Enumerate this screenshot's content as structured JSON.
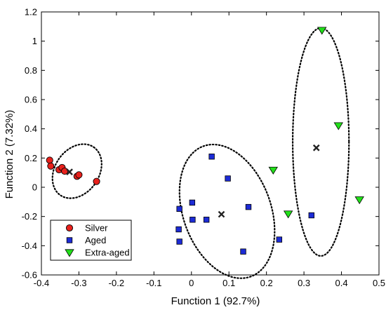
{
  "chart_data": {
    "type": "scatter",
    "xlabel": "Function 1 (92.7%)",
    "ylabel": "Function 2 (7.32%)",
    "xlim": [
      -0.4,
      0.5
    ],
    "ylim": [
      -0.6,
      1.2
    ],
    "xticks": [
      "-0.4",
      "-0.3",
      "-0.2",
      "-0.1",
      "0",
      "0.1",
      "0.2",
      "0.3",
      "0.4",
      "0.5"
    ],
    "yticks": [
      "-0.6",
      "-0.4",
      "-0.2",
      "0",
      "0.2",
      "0.4",
      "0.6",
      "0.8",
      "1",
      "1.2"
    ],
    "grid": false,
    "legend_position": "bottom-left",
    "series": [
      {
        "name": "Silver",
        "marker": "circle",
        "color": "#e8211c",
        "points": [
          {
            "x": -0.378,
            "y": 0.185
          },
          {
            "x": -0.375,
            "y": 0.145
          },
          {
            "x": -0.353,
            "y": 0.12
          },
          {
            "x": -0.345,
            "y": 0.135
          },
          {
            "x": -0.338,
            "y": 0.11
          },
          {
            "x": -0.305,
            "y": 0.075
          },
          {
            "x": -0.3,
            "y": 0.085
          },
          {
            "x": -0.253,
            "y": 0.04
          }
        ]
      },
      {
        "name": "Aged",
        "marker": "square",
        "color": "#1c2bd6",
        "points": [
          {
            "x": 0.054,
            "y": 0.21
          },
          {
            "x": 0.097,
            "y": 0.06
          },
          {
            "x": 0.002,
            "y": -0.105
          },
          {
            "x": -0.032,
            "y": -0.148
          },
          {
            "x": 0.152,
            "y": -0.135
          },
          {
            "x": 0.003,
            "y": -0.222
          },
          {
            "x": 0.04,
            "y": -0.222
          },
          {
            "x": -0.034,
            "y": -0.288
          },
          {
            "x": -0.032,
            "y": -0.372
          },
          {
            "x": 0.138,
            "y": -0.44
          },
          {
            "x": 0.234,
            "y": -0.358
          },
          {
            "x": 0.32,
            "y": -0.192
          }
        ]
      },
      {
        "name": "Extra-aged",
        "marker": "triangle-down",
        "color": "#22e01a",
        "points": [
          {
            "x": 0.348,
            "y": 1.075
          },
          {
            "x": 0.392,
            "y": 0.422
          },
          {
            "x": 0.218,
            "y": 0.118
          },
          {
            "x": 0.258,
            "y": -0.182
          },
          {
            "x": 0.448,
            "y": -0.085
          }
        ]
      }
    ],
    "centroids": [
      {
        "x": -0.325,
        "y": 0.105
      },
      {
        "x": 0.08,
        "y": -0.185
      },
      {
        "x": 0.333,
        "y": 0.27
      }
    ],
    "ellipses": [
      {
        "cx": -0.305,
        "cy": 0.11,
        "rx": 0.078,
        "ry": 0.15,
        "angle": -55
      },
      {
        "cx": 0.095,
        "cy": -0.165,
        "rx": 0.185,
        "ry": 0.3,
        "angle": 70
      },
      {
        "cx": 0.345,
        "cy": 0.31,
        "rx": 0.075,
        "ry": 0.78,
        "angle": 0
      }
    ]
  }
}
